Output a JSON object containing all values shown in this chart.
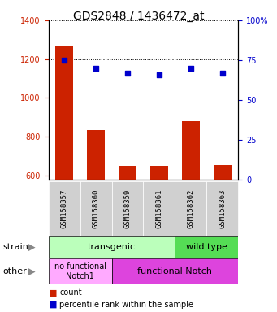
{
  "title": "GDS2848 / 1436472_at",
  "samples": [
    "GSM158357",
    "GSM158360",
    "GSM158359",
    "GSM158361",
    "GSM158362",
    "GSM158363"
  ],
  "counts": [
    1265,
    835,
    650,
    650,
    880,
    655
  ],
  "percentiles": [
    75,
    70,
    67,
    66,
    70,
    67
  ],
  "ylim_left": [
    580,
    1400
  ],
  "ylim_right": [
    0,
    100
  ],
  "yticks_left": [
    600,
    800,
    1000,
    1200,
    1400
  ],
  "yticks_right": [
    0,
    25,
    50,
    75,
    100
  ],
  "bar_color": "#cc2200",
  "dot_color": "#0000cc",
  "bar_bottom": 580,
  "transgenic_color": "#bbffbb",
  "wildtype_color": "#55dd55",
  "no_func_color": "#ffaaff",
  "func_notch_color": "#dd44dd",
  "xtick_bg_color": "#d0d0d0",
  "strain_row_label": "strain",
  "other_row_label": "other",
  "legend_count_label": "count",
  "legend_pct_label": "percentile rank within the sample",
  "left_axis_color": "#cc2200",
  "right_axis_color": "#0000cc",
  "title_fontsize": 10,
  "tick_fontsize": 7,
  "annotation_fontsize": 8,
  "bar_fontsize": 6.5
}
